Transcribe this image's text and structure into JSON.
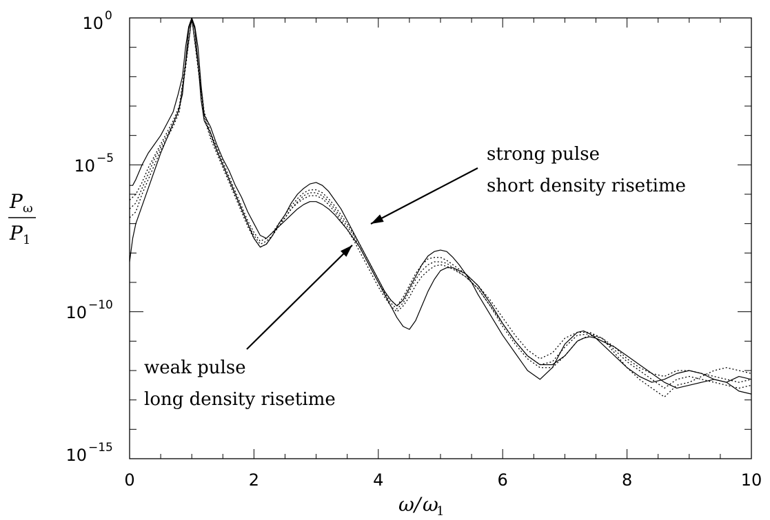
{
  "chart_data": {
    "type": "line",
    "xlabel_symbol": "ω",
    "xlabel_ref": "ω",
    "xlabel_ref_sub": "1",
    "ylabel_num": "P",
    "ylabel_num_sub": "ω",
    "ylabel_den": "P",
    "ylabel_den_sub": "1",
    "xlim": [
      0,
      10
    ],
    "ylim_exp": [
      -15,
      0
    ],
    "y_scale": "log",
    "x_ticks": [
      "0",
      "2",
      "4",
      "6",
      "8",
      "10"
    ],
    "y_ticks": [
      {
        "base": "10",
        "exp": "0"
      },
      {
        "base": "10",
        "exp": "−5"
      },
      {
        "base": "10",
        "exp": "−10"
      },
      {
        "base": "10",
        "exp": "−15"
      }
    ],
    "annotations": [
      {
        "lines": [
          "strong pulse",
          "short density risetime"
        ]
      },
      {
        "lines": [
          "weak pulse",
          "long density risetime"
        ]
      }
    ],
    "series": [
      {
        "style": "solid",
        "x": [
          0.0,
          0.05,
          0.1,
          0.2,
          0.3,
          0.4,
          0.5,
          0.6,
          0.7,
          0.78,
          0.85,
          0.9,
          0.95,
          1.0,
          1.05,
          1.1,
          1.15,
          1.2,
          1.3,
          1.4,
          1.5,
          1.6,
          1.7,
          1.8,
          1.9,
          2.0,
          2.1,
          2.2,
          2.3,
          2.4,
          2.5,
          2.6,
          2.7,
          2.8,
          2.9,
          3.0,
          3.1,
          3.2,
          3.3,
          3.4,
          3.5,
          3.6,
          3.7,
          3.8,
          3.9,
          4.0,
          4.1,
          4.2,
          4.3,
          4.4,
          4.5,
          4.6,
          4.7,
          4.8,
          4.9,
          5.0,
          5.1,
          5.2,
          5.3,
          5.4,
          5.5,
          5.6,
          5.8,
          6.0,
          6.2,
          6.4,
          6.6,
          6.8,
          7.0,
          7.2,
          7.3,
          7.4,
          7.5,
          7.6,
          7.8,
          8.0,
          8.2,
          8.4,
          8.6,
          8.8,
          9.0,
          9.2,
          9.4,
          9.6,
          9.8,
          10.0
        ],
        "y_exp": [
          -5.7,
          -5.7,
          -5.5,
          -5.0,
          -4.6,
          -4.3,
          -4.0,
          -3.6,
          -3.2,
          -2.6,
          -2.0,
          -1.0,
          -0.3,
          0.0,
          -0.3,
          -1.0,
          -2.3,
          -3.3,
          -3.7,
          -4.3,
          -4.8,
          -5.2,
          -5.7,
          -6.1,
          -6.6,
          -7.0,
          -7.4,
          -7.5,
          -7.3,
          -7.1,
          -6.9,
          -6.7,
          -6.5,
          -6.35,
          -6.25,
          -6.25,
          -6.35,
          -6.5,
          -6.7,
          -6.95,
          -7.2,
          -7.5,
          -7.8,
          -8.2,
          -8.6,
          -9.0,
          -9.4,
          -9.8,
          -10.2,
          -10.5,
          -10.6,
          -10.3,
          -9.8,
          -9.3,
          -8.9,
          -8.6,
          -8.5,
          -8.5,
          -8.6,
          -8.7,
          -8.9,
          -9.1,
          -9.7,
          -10.4,
          -11.0,
          -11.5,
          -11.8,
          -11.8,
          -11.5,
          -11.0,
          -10.9,
          -10.85,
          -10.9,
          -11.0,
          -11.2,
          -11.5,
          -11.8,
          -12.1,
          -12.4,
          -12.6,
          -12.5,
          -12.4,
          -12.3,
          -12.4,
          -12.7,
          -12.8
        ]
      },
      {
        "style": "dotted",
        "x": [
          0.0,
          0.1,
          0.2,
          0.3,
          0.4,
          0.5,
          0.6,
          0.7,
          0.8,
          0.9,
          1.0,
          1.1,
          1.2,
          1.3,
          1.4,
          1.5,
          1.6,
          1.7,
          1.8,
          1.9,
          2.0,
          2.1,
          2.2,
          2.3,
          2.4,
          2.5,
          2.6,
          2.7,
          2.8,
          2.9,
          3.0,
          3.1,
          3.2,
          3.3,
          3.4,
          3.5,
          3.6,
          3.7,
          3.8,
          3.9,
          4.0,
          4.1,
          4.2,
          4.3,
          4.4,
          4.5,
          4.6,
          4.7,
          4.8,
          4.9,
          5.0,
          5.1,
          5.2,
          5.4,
          5.6,
          5.8,
          6.0,
          6.2,
          6.4,
          6.6,
          6.8,
          7.0,
          7.2,
          7.4,
          7.6,
          7.8,
          8.0,
          8.2,
          8.4,
          8.6,
          8.8,
          9.0,
          9.2,
          9.4,
          9.6,
          9.8,
          10.0
        ],
        "y_exp": [
          -6.2,
          -6.0,
          -5.6,
          -5.1,
          -4.7,
          -4.3,
          -3.9,
          -3.5,
          -3.0,
          -1.5,
          0.0,
          -1.5,
          -3.2,
          -3.9,
          -4.4,
          -4.9,
          -5.4,
          -5.9,
          -6.4,
          -6.9,
          -7.3,
          -7.6,
          -7.5,
          -7.3,
          -7.0,
          -6.8,
          -6.5,
          -6.3,
          -6.15,
          -6.05,
          -6.05,
          -6.15,
          -6.35,
          -6.6,
          -6.9,
          -7.2,
          -7.55,
          -7.95,
          -8.35,
          -8.75,
          -9.15,
          -9.5,
          -9.8,
          -10.0,
          -9.8,
          -9.5,
          -9.1,
          -8.8,
          -8.6,
          -8.45,
          -8.4,
          -8.45,
          -8.55,
          -8.8,
          -9.2,
          -9.8,
          -10.5,
          -11.1,
          -11.6,
          -11.9,
          -11.9,
          -11.5,
          -11.0,
          -10.8,
          -10.9,
          -11.2,
          -11.6,
          -11.9,
          -12.1,
          -12.2,
          -12.0,
          -12.0,
          -12.1,
          -12.2,
          -12.3,
          -12.4,
          -12.3
        ]
      },
      {
        "style": "dotted",
        "x": [
          0.0,
          0.1,
          0.2,
          0.3,
          0.4,
          0.5,
          0.6,
          0.7,
          0.8,
          0.9,
          1.0,
          1.1,
          1.2,
          1.3,
          1.4,
          1.5,
          1.6,
          1.7,
          1.8,
          1.9,
          2.0,
          2.1,
          2.2,
          2.3,
          2.4,
          2.5,
          2.6,
          2.7,
          2.8,
          2.9,
          3.0,
          3.1,
          3.2,
          3.3,
          3.4,
          3.5,
          3.6,
          3.7,
          3.8,
          3.9,
          4.0,
          4.1,
          4.2,
          4.3,
          4.4,
          4.5,
          4.6,
          4.7,
          4.8,
          4.9,
          5.0,
          5.1,
          5.2,
          5.4,
          5.6,
          5.8,
          6.0,
          6.2,
          6.4,
          6.6,
          6.8,
          7.0,
          7.2,
          7.4,
          7.6,
          7.8,
          8.0,
          8.2,
          8.4,
          8.6,
          8.8,
          9.0,
          9.2,
          9.4,
          9.6,
          9.8,
          10.0
        ],
        "y_exp": [
          -6.5,
          -6.3,
          -5.8,
          -5.3,
          -4.8,
          -4.4,
          -4.0,
          -3.6,
          -3.1,
          -1.6,
          0.0,
          -1.6,
          -3.3,
          -4.0,
          -4.5,
          -5.0,
          -5.5,
          -6.0,
          -6.5,
          -7.0,
          -7.4,
          -7.7,
          -7.6,
          -7.4,
          -7.1,
          -6.8,
          -6.5,
          -6.25,
          -6.05,
          -5.95,
          -5.95,
          -6.05,
          -6.25,
          -6.5,
          -6.8,
          -7.1,
          -7.4,
          -7.8,
          -8.2,
          -8.6,
          -9.0,
          -9.35,
          -9.7,
          -9.9,
          -9.7,
          -9.3,
          -8.9,
          -8.6,
          -8.4,
          -8.3,
          -8.3,
          -8.35,
          -8.5,
          -8.8,
          -9.2,
          -9.8,
          -10.4,
          -11.0,
          -11.5,
          -11.8,
          -11.7,
          -11.2,
          -10.8,
          -10.75,
          -10.9,
          -11.3,
          -11.7,
          -12.0,
          -12.3,
          -12.6,
          -12.3,
          -12.2,
          -12.3,
          -12.4,
          -12.5,
          -12.6,
          -12.5
        ]
      },
      {
        "style": "dotted",
        "x": [
          0.0,
          0.1,
          0.2,
          0.3,
          0.4,
          0.5,
          0.6,
          0.7,
          0.8,
          0.9,
          1.0,
          1.1,
          1.2,
          1.3,
          1.4,
          1.5,
          1.6,
          1.7,
          1.8,
          1.9,
          2.0,
          2.1,
          2.2,
          2.3,
          2.4,
          2.5,
          2.6,
          2.7,
          2.8,
          2.9,
          3.0,
          3.1,
          3.2,
          3.3,
          3.4,
          3.5,
          3.6,
          3.7,
          3.8,
          3.9,
          4.0,
          4.1,
          4.2,
          4.3,
          4.4,
          4.5,
          4.6,
          4.7,
          4.8,
          4.9,
          5.0,
          5.1,
          5.2,
          5.4,
          5.6,
          5.8,
          6.0,
          6.2,
          6.4,
          6.6,
          6.8,
          7.0,
          7.2,
          7.4,
          7.6,
          7.8,
          8.0,
          8.2,
          8.4,
          8.6,
          8.8,
          9.0,
          9.2,
          9.4,
          9.6,
          9.8,
          10.0
        ],
        "y_exp": [
          -6.8,
          -6.6,
          -6.0,
          -5.5,
          -5.0,
          -4.5,
          -4.1,
          -3.7,
          -3.2,
          -1.7,
          0.0,
          -1.7,
          -3.4,
          -4.1,
          -4.6,
          -5.1,
          -5.6,
          -6.1,
          -6.6,
          -7.1,
          -7.5,
          -7.8,
          -7.7,
          -7.4,
          -7.0,
          -6.7,
          -6.4,
          -6.15,
          -5.95,
          -5.85,
          -5.85,
          -5.95,
          -6.15,
          -6.4,
          -6.7,
          -7.0,
          -7.35,
          -7.7,
          -8.1,
          -8.5,
          -8.9,
          -9.3,
          -9.6,
          -9.8,
          -9.5,
          -9.1,
          -8.7,
          -8.4,
          -8.2,
          -8.15,
          -8.15,
          -8.25,
          -8.4,
          -8.7,
          -9.1,
          -9.6,
          -10.2,
          -10.8,
          -11.3,
          -11.6,
          -11.4,
          -10.9,
          -10.7,
          -10.7,
          -10.9,
          -11.4,
          -11.9,
          -12.3,
          -12.6,
          -12.9,
          -12.5,
          -12.4,
          -12.2,
          -12.0,
          -11.9,
          -12.0,
          -12.1
        ]
      },
      {
        "style": "solid",
        "x": [
          0.0,
          0.05,
          0.1,
          0.2,
          0.3,
          0.4,
          0.5,
          0.6,
          0.7,
          0.78,
          0.85,
          0.9,
          0.95,
          1.0,
          1.05,
          1.1,
          1.15,
          1.2,
          1.3,
          1.4,
          1.5,
          1.6,
          1.7,
          1.8,
          1.9,
          2.0,
          2.1,
          2.2,
          2.3,
          2.4,
          2.5,
          2.6,
          2.7,
          2.8,
          2.9,
          3.0,
          3.1,
          3.2,
          3.3,
          3.4,
          3.5,
          3.6,
          3.7,
          3.8,
          3.9,
          4.0,
          4.1,
          4.2,
          4.3,
          4.4,
          4.5,
          4.6,
          4.7,
          4.8,
          4.9,
          5.0,
          5.1,
          5.2,
          5.3,
          5.4,
          5.5,
          5.6,
          5.8,
          6.0,
          6.2,
          6.4,
          6.6,
          6.8,
          7.0,
          7.2,
          7.3,
          7.4,
          7.5,
          7.6,
          7.8,
          8.0,
          8.2,
          8.4,
          8.6,
          8.8,
          9.0,
          9.2,
          9.4,
          9.6,
          9.8,
          10.0
        ],
        "y_exp": [
          -8.3,
          -7.5,
          -7.0,
          -6.4,
          -5.8,
          -5.2,
          -4.6,
          -4.1,
          -3.6,
          -3.2,
          -2.6,
          -1.5,
          -0.4,
          0.0,
          -0.4,
          -1.5,
          -2.8,
          -3.5,
          -3.9,
          -4.5,
          -5.0,
          -5.5,
          -6.0,
          -6.5,
          -7.0,
          -7.5,
          -7.8,
          -7.7,
          -7.4,
          -7.0,
          -6.7,
          -6.3,
          -6.0,
          -5.8,
          -5.65,
          -5.6,
          -5.7,
          -5.9,
          -6.2,
          -6.5,
          -6.9,
          -7.3,
          -7.7,
          -8.1,
          -8.5,
          -8.9,
          -9.3,
          -9.6,
          -9.8,
          -9.6,
          -9.2,
          -8.8,
          -8.4,
          -8.1,
          -7.95,
          -7.9,
          -7.95,
          -8.15,
          -8.4,
          -8.7,
          -9.0,
          -9.4,
          -10.1,
          -10.8,
          -11.4,
          -12.0,
          -12.3,
          -11.9,
          -11.1,
          -10.7,
          -10.65,
          -10.75,
          -10.9,
          -11.1,
          -11.5,
          -11.9,
          -12.2,
          -12.4,
          -12.3,
          -12.1,
          -12.0,
          -12.1,
          -12.3,
          -12.4,
          -12.2,
          -12.3
        ]
      }
    ]
  }
}
